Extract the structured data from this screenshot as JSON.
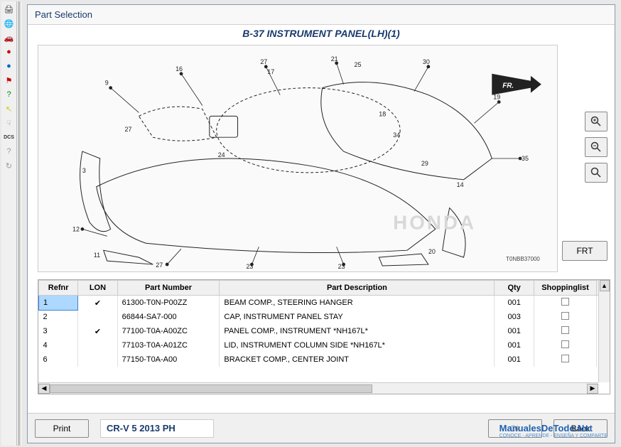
{
  "dialog": {
    "title": "Part Selection"
  },
  "diagram": {
    "title": "B-37 INSTRUMENT PANEL(LH)(1)",
    "fr_label": "FR.",
    "code": "T0NBB37000",
    "brand_watermark": "HONDA"
  },
  "buttons": {
    "frt": "FRT",
    "print": "Print",
    "ok": "Ok",
    "back": "Back"
  },
  "vehicle": "CR-V 5 2013 PH",
  "table": {
    "columns": [
      "Refnr",
      "LON",
      "Part Number",
      "Part Description",
      "Qty",
      "Shoppinglist"
    ],
    "rows": [
      {
        "refnr": "1",
        "lon": true,
        "pn": "61300-T0N-P00ZZ",
        "desc": "BEAM COMP., STEERING HANGER",
        "qty": "001",
        "selected": true
      },
      {
        "refnr": "2",
        "lon": false,
        "pn": "66844-SA7-000",
        "desc": "CAP, INSTRUMENT PANEL STAY",
        "qty": "003",
        "selected": false
      },
      {
        "refnr": "3",
        "lon": true,
        "pn": "77100-T0A-A00ZC",
        "desc": "PANEL COMP., INSTRUMENT *NH167L*",
        "qty": "001",
        "selected": false
      },
      {
        "refnr": "4",
        "lon": false,
        "pn": "77103-T0A-A01ZC",
        "desc": "LID, INSTRUMENT COLUMN SIDE *NH167L*",
        "qty": "001",
        "selected": false
      },
      {
        "refnr": "6",
        "lon": false,
        "pn": "77150-T0A-A00",
        "desc": "BRACKET COMP., CENTER JOINT",
        "qty": "001",
        "selected": false
      }
    ]
  },
  "watermark": {
    "logo": "ManualesDeTodo.Net",
    "sub": "CONOCE - APRENDE - ENSEÑA Y COMPARTE"
  },
  "toolbar_icons": [
    {
      "name": "printer-icon",
      "glyph": "🖨",
      "color": "#333"
    },
    {
      "name": "globe-icon",
      "glyph": "🌐",
      "color": "#333"
    },
    {
      "name": "car-icon",
      "glyph": "🚗",
      "color": "#7a1010"
    },
    {
      "name": "info-red-icon",
      "glyph": "●",
      "color": "#c00"
    },
    {
      "name": "info-blue-icon",
      "glyph": "●",
      "color": "#06c"
    },
    {
      "name": "flag-icon",
      "glyph": "⚑",
      "color": "#c00"
    },
    {
      "name": "question-icon",
      "glyph": "?",
      "color": "#080"
    },
    {
      "name": "back-arrow-icon",
      "glyph": "↖",
      "color": "#cc0"
    },
    {
      "name": "hand-icon",
      "glyph": "☟",
      "color": "#999"
    },
    {
      "name": "dcs-icon",
      "glyph": "DCS",
      "color": "#333"
    },
    {
      "name": "help-icon",
      "glyph": "?",
      "color": "#999"
    },
    {
      "name": "refresh-icon",
      "glyph": "↻",
      "color": "#999"
    }
  ]
}
